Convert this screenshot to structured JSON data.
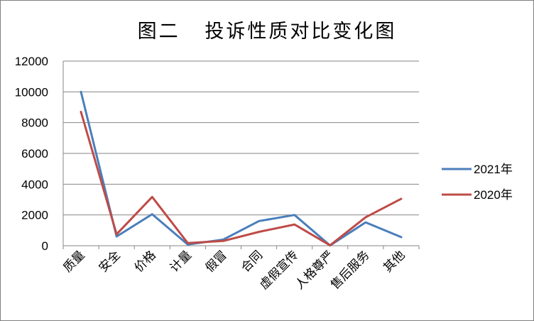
{
  "chart_data": {
    "type": "line",
    "title": "图二   投诉性质对比变化图",
    "categories": [
      "质量",
      "安全",
      "价格",
      "计量",
      "假冒",
      "合同",
      "虚假宣传",
      "人格尊严",
      "售后服务",
      "其他"
    ],
    "series": [
      {
        "name": "2021年",
        "color": "#4a7ebb",
        "values": [
          10000,
          600,
          2050,
          80,
          400,
          1600,
          2000,
          20,
          1520,
          560
        ]
      },
      {
        "name": "2020年",
        "color": "#be4b48",
        "values": [
          8700,
          750,
          3170,
          170,
          310,
          900,
          1380,
          30,
          1850,
          3050
        ]
      }
    ],
    "ylim": [
      0,
      12000
    ],
    "yticks": [
      "0",
      "2000",
      "4000",
      "6000",
      "8000",
      "10000",
      "12000"
    ],
    "grid": true,
    "legend_position": "right"
  }
}
